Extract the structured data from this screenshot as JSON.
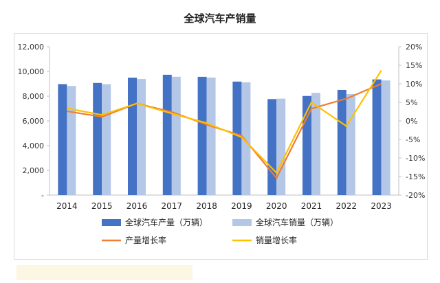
{
  "title": "全球汽车产销量",
  "chart_data": {
    "type": "bar",
    "categories": [
      "2014",
      "2015",
      "2016",
      "2017",
      "2018",
      "2019",
      "2020",
      "2021",
      "2022",
      "2023"
    ],
    "series": [
      {
        "name": "全球汽车产量（万辆）",
        "kind": "bar",
        "axis": "left",
        "color": "#4472c4",
        "values": [
          8975,
          9068,
          9498,
          9730,
          9563,
          9179,
          7762,
          8015,
          8502,
          9355
        ]
      },
      {
        "name": "全球汽车销量（万辆）",
        "kind": "bar",
        "axis": "left",
        "color": "#b4c7e7",
        "values": [
          8824,
          8968,
          9386,
          9566,
          9506,
          9124,
          7797,
          8268,
          8163,
          9272
        ]
      },
      {
        "name": "产量增长率",
        "kind": "line",
        "axis": "right",
        "color": "#ed7d31",
        "values": [
          2.6,
          1.1,
          4.7,
          2.4,
          -1.0,
          -4.0,
          -15.4,
          3.3,
          6.0,
          10.0
        ]
      },
      {
        "name": "销量增长率",
        "kind": "line",
        "axis": "right",
        "color": "#ffc000",
        "values": [
          3.4,
          1.6,
          4.7,
          2.0,
          -0.6,
          -4.4,
          -14.0,
          5.0,
          -1.4,
          13.6
        ]
      }
    ],
    "left_axis": {
      "ticks": [
        "-",
        "2,000",
        "4,000",
        "6,000",
        "8,000",
        "10,000",
        "12,000"
      ],
      "ylim": [
        0,
        12000
      ]
    },
    "right_axis": {
      "ticks": [
        "-20%",
        "-15%",
        "-10%",
        "-5%",
        "0%",
        "5%",
        "10%",
        "15%",
        "20%"
      ],
      "ylim": [
        -20,
        20
      ]
    },
    "grid": false,
    "legend_position": "bottom"
  }
}
